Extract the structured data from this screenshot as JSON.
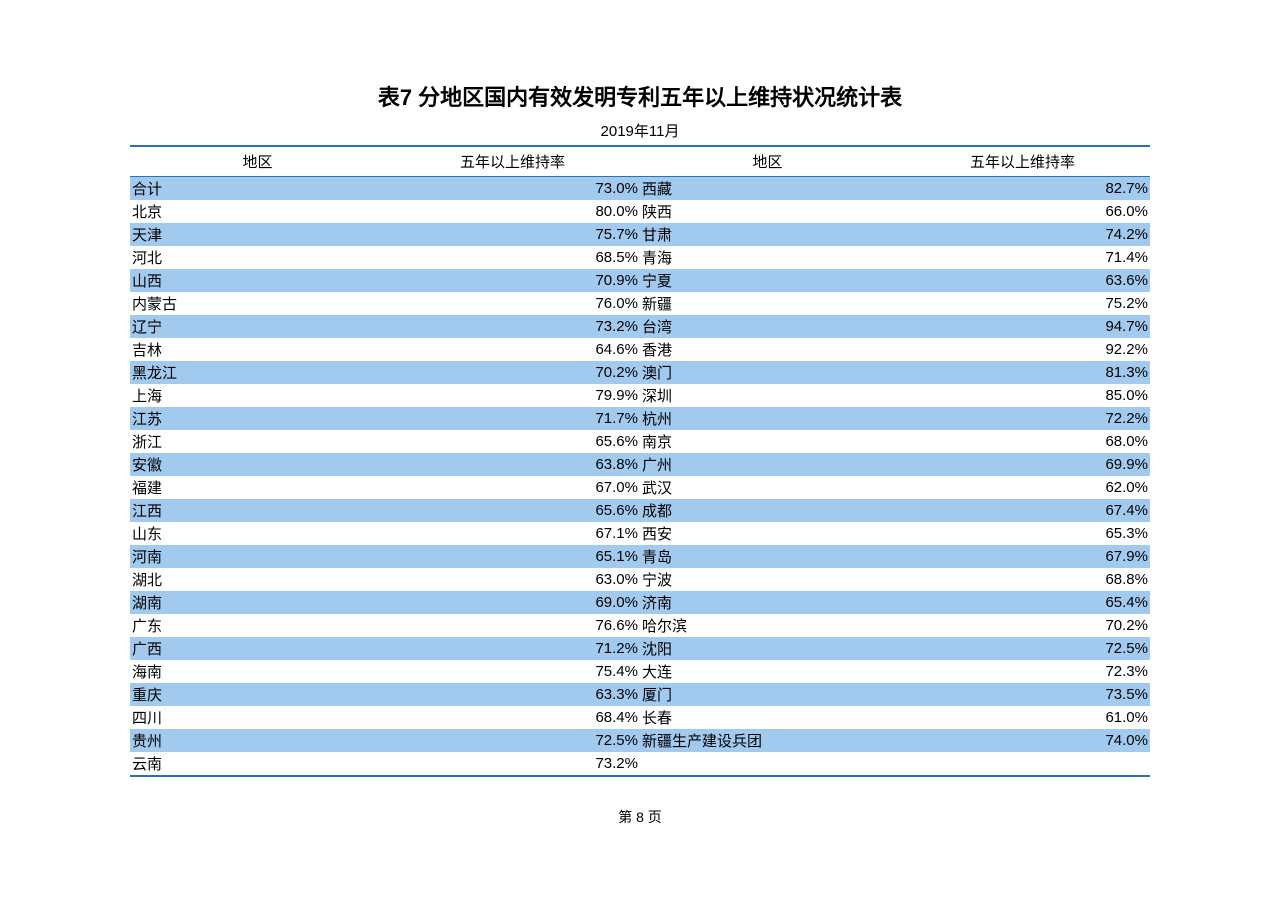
{
  "title": "表7  分地区国内有效发明专利五年以上维持状况统计表",
  "subtitle": "2019年11月",
  "headers": {
    "region": "地区",
    "rate": "五年以上维持率"
  },
  "colors": {
    "border": "#2a71b8",
    "stripe": "#a2c9ee",
    "background": "#ffffff",
    "text": "#000000"
  },
  "rows": [
    {
      "r1": "合计",
      "v1": "73.0%",
      "r2": "西藏",
      "v2": "82.7%"
    },
    {
      "r1": "北京",
      "v1": "80.0%",
      "r2": "陕西",
      "v2": "66.0%"
    },
    {
      "r1": "天津",
      "v1": "75.7%",
      "r2": "甘肃",
      "v2": "74.2%"
    },
    {
      "r1": "河北",
      "v1": "68.5%",
      "r2": "青海",
      "v2": "71.4%"
    },
    {
      "r1": "山西",
      "v1": "70.9%",
      "r2": "宁夏",
      "v2": "63.6%"
    },
    {
      "r1": "内蒙古",
      "v1": "76.0%",
      "r2": "新疆",
      "v2": "75.2%"
    },
    {
      "r1": "辽宁",
      "v1": "73.2%",
      "r2": "台湾",
      "v2": "94.7%"
    },
    {
      "r1": "吉林",
      "v1": "64.6%",
      "r2": "香港",
      "v2": "92.2%"
    },
    {
      "r1": "黑龙江",
      "v1": "70.2%",
      "r2": "澳门",
      "v2": "81.3%"
    },
    {
      "r1": "上海",
      "v1": "79.9%",
      "r2": "深圳",
      "v2": "85.0%"
    },
    {
      "r1": "江苏",
      "v1": "71.7%",
      "r2": "杭州",
      "v2": "72.2%"
    },
    {
      "r1": "浙江",
      "v1": "65.6%",
      "r2": "南京",
      "v2": "68.0%"
    },
    {
      "r1": "安徽",
      "v1": "63.8%",
      "r2": "广州",
      "v2": "69.9%"
    },
    {
      "r1": "福建",
      "v1": "67.0%",
      "r2": "武汉",
      "v2": "62.0%"
    },
    {
      "r1": "江西",
      "v1": "65.6%",
      "r2": "成都",
      "v2": "67.4%"
    },
    {
      "r1": "山东",
      "v1": "67.1%",
      "r2": "西安",
      "v2": "65.3%"
    },
    {
      "r1": "河南",
      "v1": "65.1%",
      "r2": "青岛",
      "v2": "67.9%"
    },
    {
      "r1": "湖北",
      "v1": "63.0%",
      "r2": "宁波",
      "v2": "68.8%"
    },
    {
      "r1": "湖南",
      "v1": "69.0%",
      "r2": "济南",
      "v2": "65.4%"
    },
    {
      "r1": "广东",
      "v1": "76.6%",
      "r2": "哈尔滨",
      "v2": "70.2%"
    },
    {
      "r1": "广西",
      "v1": "71.2%",
      "r2": "沈阳",
      "v2": "72.5%"
    },
    {
      "r1": "海南",
      "v1": "75.4%",
      "r2": "大连",
      "v2": "72.3%"
    },
    {
      "r1": "重庆",
      "v1": "63.3%",
      "r2": "厦门",
      "v2": "73.5%"
    },
    {
      "r1": "四川",
      "v1": "68.4%",
      "r2": "长春",
      "v2": "61.0%"
    },
    {
      "r1": "贵州",
      "v1": "72.5%",
      "r2": "新疆生产建设兵团",
      "v2": "74.0%"
    },
    {
      "r1": "云南",
      "v1": "73.2%",
      "r2": "",
      "v2": ""
    }
  ],
  "footer": "第 8 页"
}
